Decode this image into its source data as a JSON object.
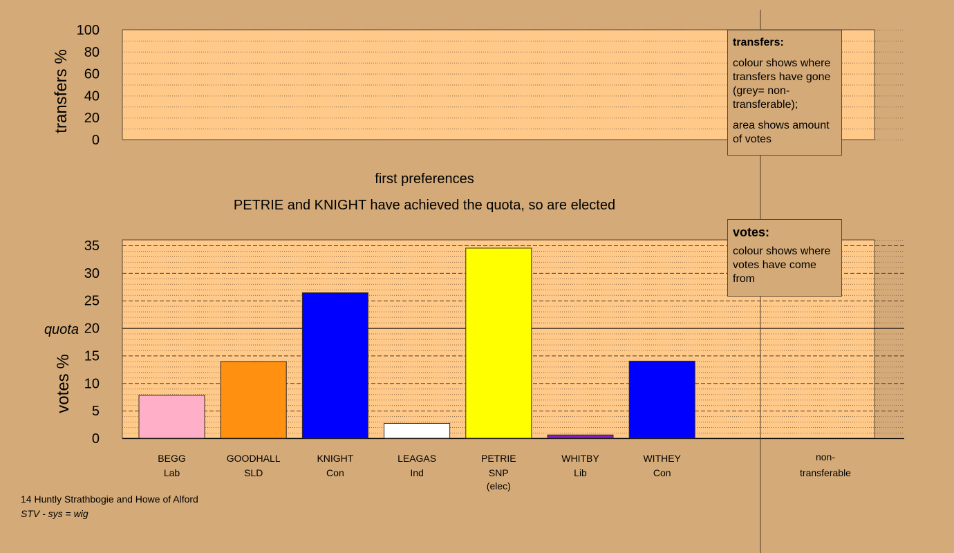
{
  "subtitles": {
    "line1": "first preferences",
    "line2": "PETRIE and KNIGHT have achieved the quota, so are elected"
  },
  "legends": {
    "transfers": {
      "title": "transfers:",
      "p1": "colour shows where transfers have gone (grey= non-transferable);",
      "p2": "area shows amount of votes"
    },
    "votes": {
      "title": "votes:",
      "p1": "colour shows where votes have come from"
    }
  },
  "footer": {
    "line1": "14 Huntly Strathbogie and Howe of Alford",
    "line2": "STV - sys = wig"
  },
  "chart_data": [
    {
      "type": "bar",
      "ylabel": "transfers %",
      "ylim": [
        0,
        100
      ],
      "yticks": [
        0,
        20,
        40,
        60,
        80,
        100
      ],
      "values": [],
      "grid": true
    },
    {
      "type": "bar",
      "ylabel": "votes %",
      "ylim": [
        0,
        36
      ],
      "yticks": [
        0,
        5,
        10,
        15,
        20,
        25,
        30,
        35
      ],
      "quota": {
        "label": "quota",
        "value": 20
      },
      "grid": true,
      "bars": [
        {
          "name": "BEGG",
          "party": "Lab",
          "value": 7.8,
          "color": "#ffb0c8"
        },
        {
          "name": "GOODHALL",
          "party": "SLD",
          "value": 13.9,
          "color": "#ff9010"
        },
        {
          "name": "KNIGHT",
          "party": "Con",
          "value": 26.4,
          "color": "#0000ff"
        },
        {
          "name": "LEAGAS",
          "party": "Ind",
          "value": 2.7,
          "color": "#ffffff"
        },
        {
          "name": "PETRIE",
          "party": "SNP",
          "note": "(elec)",
          "value": 34.5,
          "color": "#ffff00"
        },
        {
          "name": "WHITBY",
          "party": "Lib",
          "value": 0.6,
          "color": "#8020c0"
        },
        {
          "name": "WITHEY",
          "party": "Con",
          "value": 14.0,
          "color": "#0000ff"
        }
      ],
      "extra_category": {
        "line1": "non-",
        "line2": "transferable"
      }
    }
  ]
}
